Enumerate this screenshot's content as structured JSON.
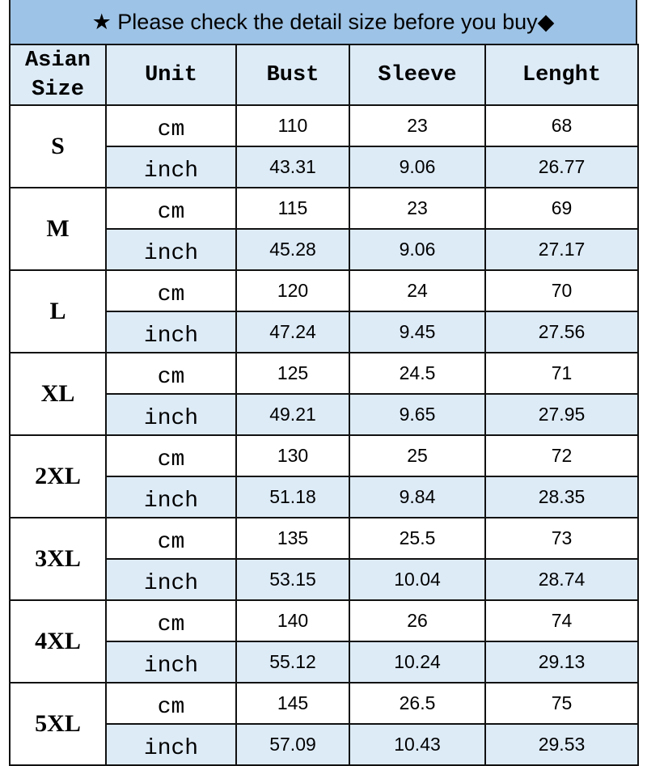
{
  "title": "★ Please check the detail size before you buy◆",
  "headers": [
    "Asian Size",
    "Unit",
    "Bust",
    "Sleeve",
    "Lenght"
  ],
  "colors": {
    "title_bg": "#9dc3e6",
    "header_bg": "#ddebf7",
    "inch_row_bg": "#ddebf7"
  },
  "rows": [
    {
      "size": "S",
      "cm": [
        "110",
        "23",
        "68"
      ],
      "inch": [
        "43.31",
        "9.06",
        "26.77"
      ]
    },
    {
      "size": "M",
      "cm": [
        "115",
        "23",
        "69"
      ],
      "inch": [
        "45.28",
        "9.06",
        "27.17"
      ]
    },
    {
      "size": "L",
      "cm": [
        "120",
        "24",
        "70"
      ],
      "inch": [
        "47.24",
        "9.45",
        "27.56"
      ]
    },
    {
      "size": "XL",
      "cm": [
        "125",
        "24.5",
        "71"
      ],
      "inch": [
        "49.21",
        "9.65",
        "27.95"
      ]
    },
    {
      "size": "2XL",
      "cm": [
        "130",
        "25",
        "72"
      ],
      "inch": [
        "51.18",
        "9.84",
        "28.35"
      ]
    },
    {
      "size": "3XL",
      "cm": [
        "135",
        "25.5",
        "73"
      ],
      "inch": [
        "53.15",
        "10.04",
        "28.74"
      ]
    },
    {
      "size": "4XL",
      "cm": [
        "140",
        "26",
        "74"
      ],
      "inch": [
        "55.12",
        "10.24",
        "29.13"
      ]
    },
    {
      "size": "5XL",
      "cm": [
        "145",
        "26.5",
        "75"
      ],
      "inch": [
        "57.09",
        "10.43",
        "29.53"
      ]
    }
  ],
  "units": {
    "cm": "cm",
    "inch": "inch"
  }
}
